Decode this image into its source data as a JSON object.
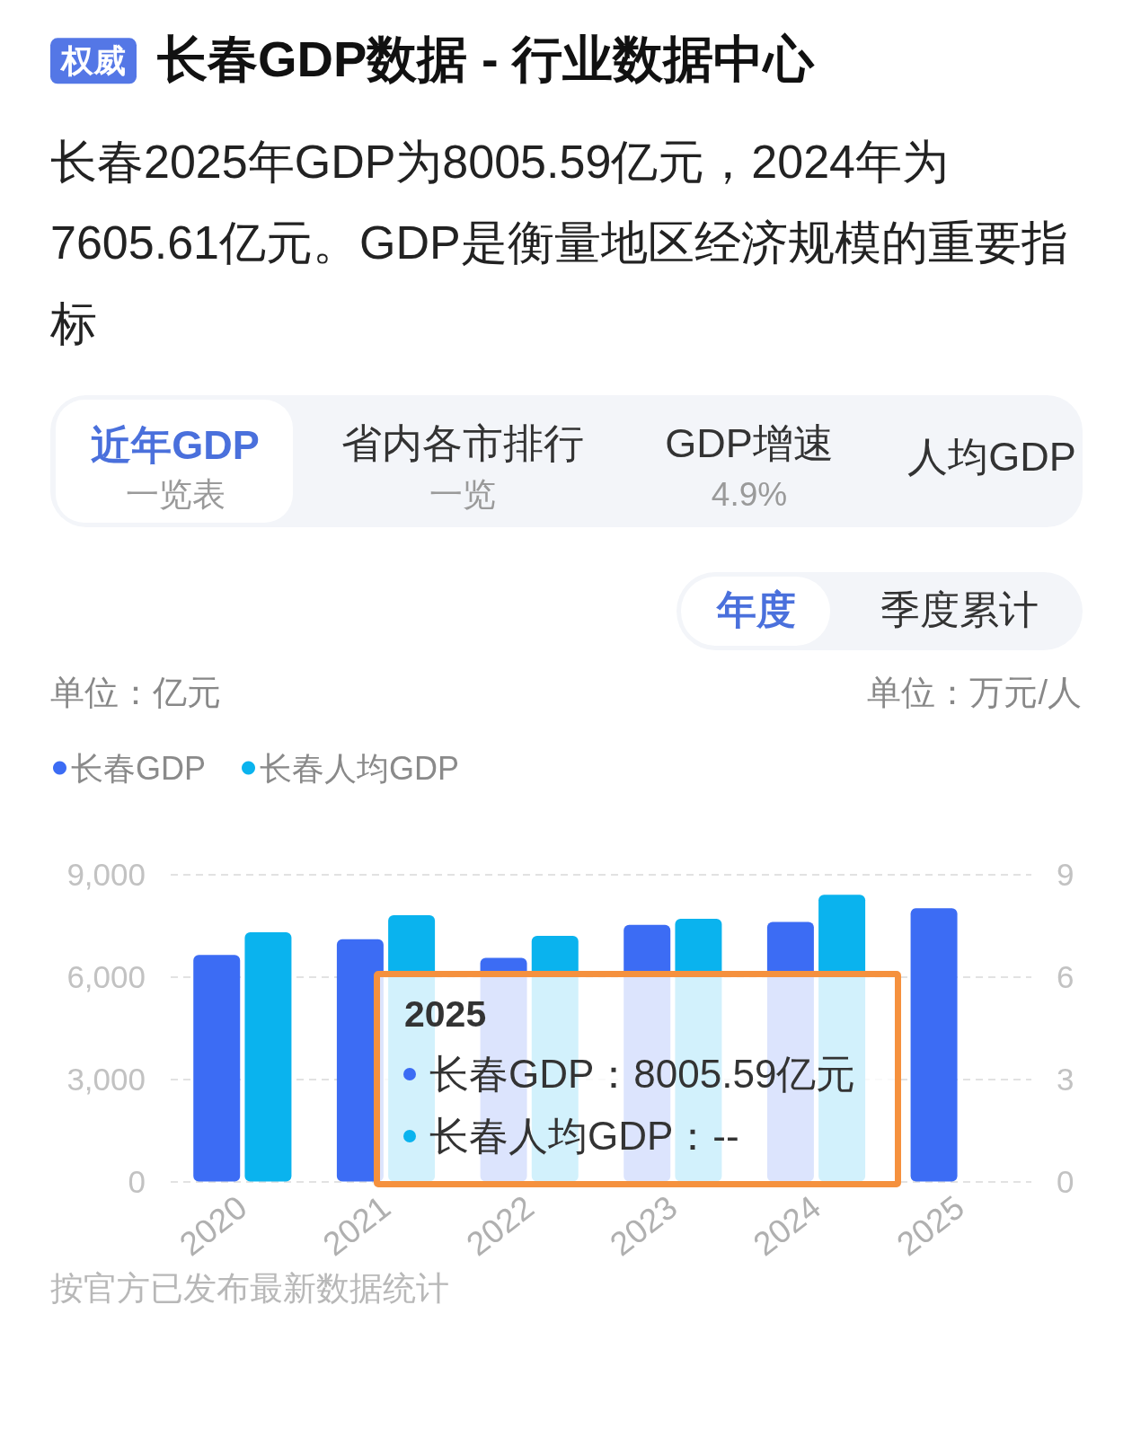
{
  "chart_data": {
    "type": "bar",
    "title": "长春GDP数据 - 行业数据中心",
    "subtitle": "长春2025年GDP为8005.59亿元，2024年为7605.61亿元。GDP是衡量地区经济规模的重要指标",
    "ylabel": "单位：亿元",
    "y2label": "单位：万元/人",
    "categories": [
      "2020",
      "2021",
      "2022",
      "2023",
      "2024",
      "2025"
    ],
    "series": [
      {
        "name": "长春GDP",
        "color": "#3c6cf4",
        "values": [
          6640,
          7100,
          6550,
          7520,
          7605.61,
          8005.59
        ]
      },
      {
        "name": "长春人均GDP",
        "color": "#0ab3ee",
        "axis": "y2",
        "values": [
          7.3,
          7.8,
          7.2,
          7.7,
          8.4,
          null
        ]
      }
    ],
    "ylim": [
      0,
      9000
    ],
    "yticks": [
      0,
      {
        "value": 3000,
        "label": "3,000"
      },
      {
        "value": 6000,
        "label": "6,000"
      },
      {
        "value": 9000,
        "label": "9,000"
      }
    ],
    "y2lim": [
      0,
      9
    ],
    "y2ticks": [
      0,
      3,
      6,
      9
    ],
    "grid": "y",
    "legend": "top left",
    "annotations": [
      "权威",
      "近年GDP",
      "一览表",
      "省内各市排行",
      "一览",
      "GDP增速",
      "4.9%",
      "人均GDP",
      "年度",
      "季度累计",
      "2025",
      "长春GDP：8005.59亿元",
      "长春人均GDP：--",
      "按官方已发布最新数据统计"
    ]
  }
}
